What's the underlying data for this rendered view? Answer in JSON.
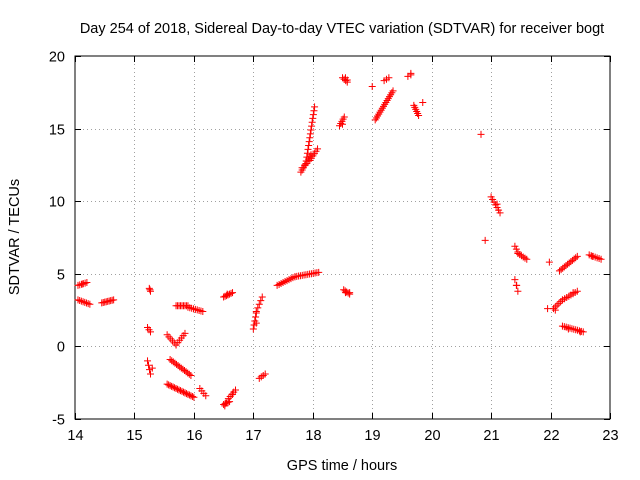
{
  "chart_data": {
    "type": "scatter",
    "title": "Day 254 of 2018, Sidereal Day-to-day VTEC variation (SDTVAR) for receiver bogt",
    "xlabel": "GPS time / hours",
    "ylabel": "SDTVAR / TECUs",
    "xlim": [
      14,
      23
    ],
    "ylim": [
      -5,
      20
    ],
    "xticks": [
      14,
      15,
      16,
      17,
      18,
      19,
      20,
      21,
      22,
      23
    ],
    "yticks": [
      -5,
      0,
      5,
      10,
      15,
      20
    ],
    "grid": true,
    "marker": "+",
    "color": "#ff0000",
    "segments": [
      {
        "x0": 14.05,
        "y0": 4.2,
        "x1": 14.2,
        "y1": 4.4,
        "n": 6
      },
      {
        "x0": 14.05,
        "y0": 3.2,
        "x1": 14.25,
        "y1": 2.9,
        "n": 8
      },
      {
        "x0": 14.45,
        "y0": 3.0,
        "x1": 14.65,
        "y1": 3.2,
        "n": 9
      },
      {
        "x0": 15.25,
        "y0": 4.0,
        "x1": 15.27,
        "y1": 3.8,
        "n": 3
      },
      {
        "x0": 15.22,
        "y0": 1.3,
        "x1": 15.27,
        "y1": 1.0,
        "n": 3
      },
      {
        "x0": 15.22,
        "y0": -1.0,
        "x1": 15.27,
        "y1": -1.9,
        "n": 4
      },
      {
        "x0": 15.55,
        "y0": 0.8,
        "x1": 15.7,
        "y1": 0.1,
        "n": 6
      },
      {
        "x0": 15.7,
        "y0": 0.1,
        "x1": 15.85,
        "y1": 0.9,
        "n": 6
      },
      {
        "x0": 15.7,
        "y0": 2.8,
        "x1": 15.9,
        "y1": 2.8,
        "n": 9
      },
      {
        "x0": 15.9,
        "y0": 2.7,
        "x1": 16.15,
        "y1": 2.4,
        "n": 9
      },
      {
        "x0": 15.6,
        "y0": -0.9,
        "x1": 15.95,
        "y1": -2.0,
        "n": 14
      },
      {
        "x0": 15.55,
        "y0": -2.6,
        "x1": 15.85,
        "y1": -3.2,
        "n": 13
      },
      {
        "x0": 15.85,
        "y0": -3.2,
        "x1": 16.0,
        "y1": -3.5,
        "n": 7
      },
      {
        "x0": 16.1,
        "y0": -2.9,
        "x1": 16.2,
        "y1": -3.4,
        "n": 4
      },
      {
        "x0": 16.5,
        "y0": 3.4,
        "x1": 16.65,
        "y1": 3.7,
        "n": 7
      },
      {
        "x0": 16.5,
        "y0": -4.0,
        "x1": 16.6,
        "y1": -3.8,
        "n": 5
      },
      {
        "x0": 16.58,
        "y0": -3.6,
        "x1": 16.7,
        "y1": -3.0,
        "n": 5
      },
      {
        "x0": 17.0,
        "y0": 1.2,
        "x1": 17.05,
        "y1": 2.3,
        "n": 5
      },
      {
        "x0": 17.05,
        "y0": 2.4,
        "x1": 17.15,
        "y1": 3.4,
        "n": 5
      },
      {
        "x0": 17.1,
        "y0": -2.2,
        "x1": 17.2,
        "y1": -1.9,
        "n": 4
      },
      {
        "x0": 17.4,
        "y0": 4.2,
        "x1": 17.7,
        "y1": 4.8,
        "n": 10
      },
      {
        "x0": 17.7,
        "y0": 4.8,
        "x1": 18.1,
        "y1": 5.1,
        "n": 14
      },
      {
        "x0": 17.8,
        "y0": 12.0,
        "x1": 17.97,
        "y1": 13.2,
        "n": 9
      },
      {
        "x0": 17.88,
        "y0": 12.5,
        "x1": 18.03,
        "y1": 16.5,
        "n": 16
      },
      {
        "x0": 17.95,
        "y0": 12.8,
        "x1": 18.08,
        "y1": 13.6,
        "n": 6
      },
      {
        "x0": 18.45,
        "y0": 15.2,
        "x1": 18.53,
        "y1": 15.8,
        "n": 5
      },
      {
        "x0": 18.5,
        "y0": 18.5,
        "x1": 18.58,
        "y1": 18.2,
        "n": 4
      },
      {
        "x0": 18.52,
        "y0": 3.9,
        "x1": 18.62,
        "y1": 3.6,
        "n": 5
      },
      {
        "x0": 19.05,
        "y0": 15.6,
        "x1": 19.35,
        "y1": 17.6,
        "n": 16
      },
      {
        "x0": 19.2,
        "y0": 18.3,
        "x1": 19.28,
        "y1": 18.5,
        "n": 3
      },
      {
        "x0": 19.6,
        "y0": 18.6,
        "x1": 19.65,
        "y1": 18.8,
        "n": 2
      },
      {
        "x0": 19.7,
        "y0": 16.6,
        "x1": 19.78,
        "y1": 15.9,
        "n": 6
      },
      {
        "x0": 21.0,
        "y0": 10.3,
        "x1": 21.15,
        "y1": 9.2,
        "n": 7
      },
      {
        "x0": 21.4,
        "y0": 6.9,
        "x1": 21.45,
        "y1": 6.5,
        "n": 3
      },
      {
        "x0": 21.4,
        "y0": 4.6,
        "x1": 21.45,
        "y1": 3.8,
        "n": 3
      },
      {
        "x0": 21.45,
        "y0": 6.4,
        "x1": 21.6,
        "y1": 6.0,
        "n": 6
      },
      {
        "x0": 22.15,
        "y0": 5.2,
        "x1": 22.45,
        "y1": 6.2,
        "n": 12
      },
      {
        "x0": 22.05,
        "y0": 2.6,
        "x1": 22.2,
        "y1": 3.2,
        "n": 6
      },
      {
        "x0": 22.2,
        "y0": 3.2,
        "x1": 22.45,
        "y1": 3.8,
        "n": 8
      },
      {
        "x0": 22.2,
        "y0": 1.4,
        "x1": 22.55,
        "y1": 1.0,
        "n": 12
      },
      {
        "x0": 22.65,
        "y0": 6.3,
        "x1": 22.85,
        "y1": 6.0,
        "n": 7
      }
    ],
    "points": [
      [
        15.3,
        -1.5
      ],
      [
        16.52,
        -4.1
      ],
      [
        16.54,
        -3.9
      ],
      [
        17.05,
        1.6
      ],
      [
        18.62,
        3.7
      ],
      [
        19.0,
        17.9
      ],
      [
        19.65,
        18.7
      ],
      [
        19.85,
        16.8
      ],
      [
        20.83,
        14.6
      ],
      [
        20.9,
        7.3
      ],
      [
        21.43,
        4.2
      ],
      [
        21.95,
        2.6
      ],
      [
        21.98,
        5.8
      ],
      [
        22.08,
        2.5
      ],
      [
        22.3,
        1.2
      ],
      [
        22.5,
        1.0
      ],
      [
        22.38,
        3.7
      ],
      [
        18.55,
        3.7
      ],
      [
        18.5,
        15.3
      ],
      [
        18.58,
        18.35
      ],
      [
        18.55,
        18.5
      ],
      [
        17.82,
        12.3
      ],
      [
        21.1,
        9.8
      ],
      [
        22.7,
        6.2
      ],
      [
        14.13,
        4.3
      ],
      [
        16.65,
        -3.3
      ],
      [
        16.56,
        3.6
      ]
    ]
  }
}
